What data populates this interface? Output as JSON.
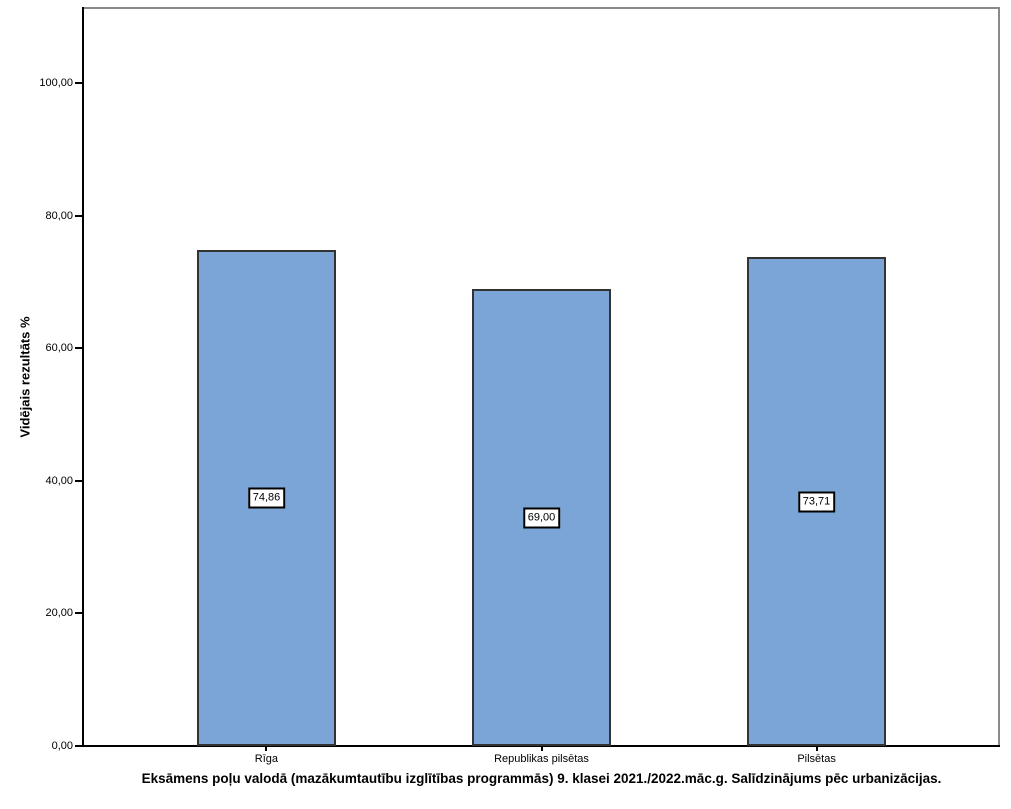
{
  "chart_data": {
    "type": "bar",
    "title": "Eksāmens poļu valodā (mazākumtautību izglītības programmās) 9. klasei 2021./2022.māc.g. Salīdzinājums pēc urbanizācijas.",
    "xlabel": "",
    "ylabel": "Vidējais rezultāts %",
    "categories": [
      "Rīga",
      "Republikas pilsētas",
      "Pilsētas"
    ],
    "values": [
      74.86,
      69.0,
      73.71
    ],
    "value_labels": [
      "74,86",
      "69,00",
      "73,71"
    ],
    "yticks": [
      0,
      20,
      40,
      60,
      80,
      100
    ],
    "ytick_labels": [
      "0,00",
      "20,00",
      "40,00",
      "60,00",
      "80,00",
      "100,00"
    ],
    "ylim": [
      0,
      111.5
    ],
    "grid": false,
    "legend": null,
    "colors": {
      "bar_fill": "#7AA5D6",
      "bar_border": "#333333",
      "axis": "#000000",
      "frame": "#8A8A8A",
      "background": "#FFFFFF",
      "text": "#000000"
    }
  }
}
